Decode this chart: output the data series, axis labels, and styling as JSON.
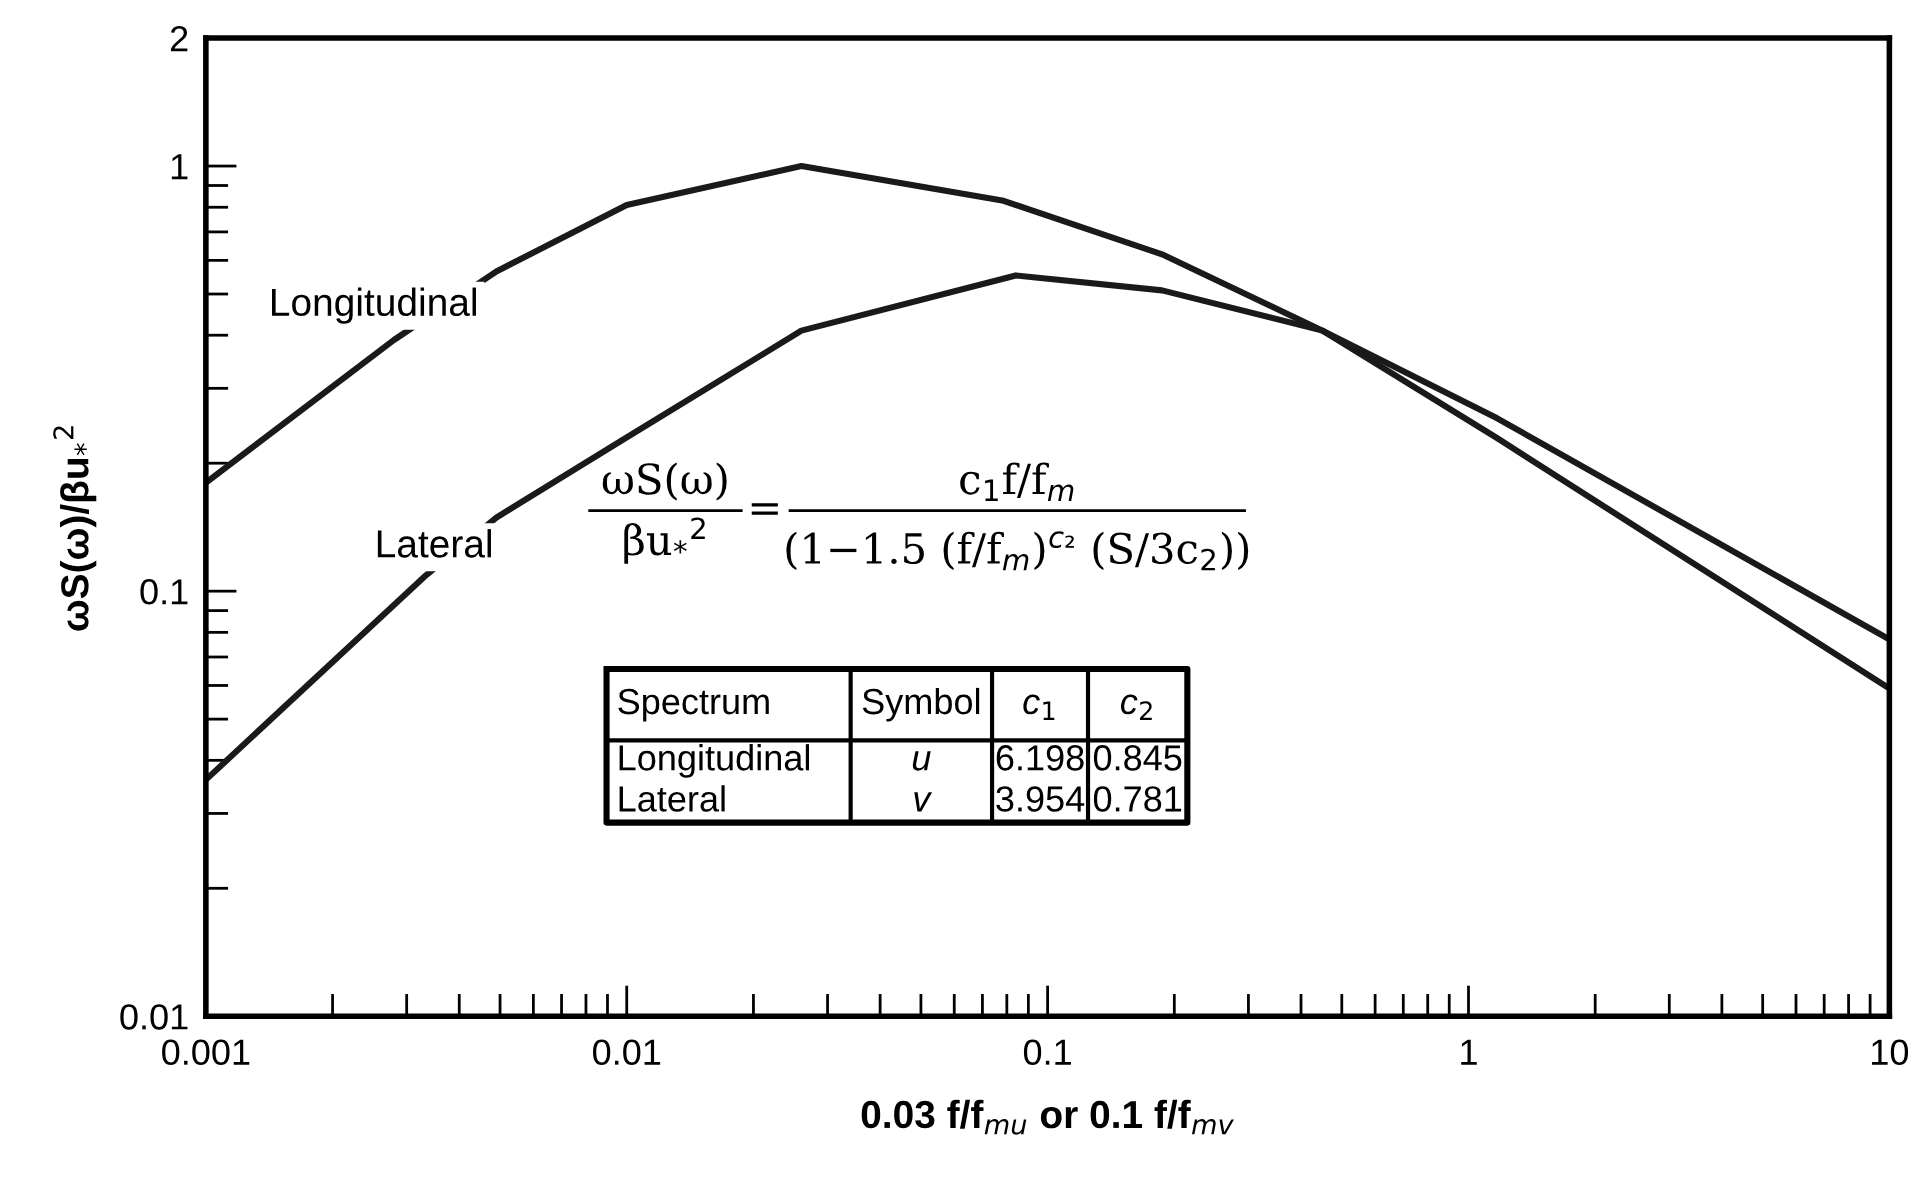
{
  "chart_data": {
    "type": "line",
    "xlabel": "0.03 f/f$_{mu}$ or 0.1 f/f$_{mv}$",
    "ylabel": "ωS(ω)/βu$_{*}$$^{2}$",
    "log": "xy",
    "xlim": [
      0.001,
      10
    ],
    "xticks": [
      0.001,
      0.01,
      0.1,
      1,
      10
    ],
    "ylim": [
      0.01,
      2
    ],
    "yticks": [
      0.01,
      0.1,
      1,
      2
    ],
    "grid": false,
    "legend": false,
    "marker": "none",
    "line_style": "solid",
    "series": [
      {
        "name": "Longitudinal",
        "color": "#1a1a1a",
        "x": [
          0.001,
          0.0028,
          0.0049,
          0.01,
          0.026,
          0.078,
          0.187,
          0.45,
          1.17,
          10
        ],
        "values": [
          0.18,
          0.39,
          0.565,
          0.81,
          1.0,
          0.83,
          0.62,
          0.41,
          0.229,
          0.059
        ]
      },
      {
        "name": "Lateral",
        "color": "#1a1a1a",
        "x": [
          0.001,
          0.0033,
          0.0049,
          0.01,
          0.026,
          0.084,
          0.187,
          0.45,
          1.17,
          10
        ],
        "values": [
          0.036,
          0.108,
          0.149,
          0.23,
          0.41,
          0.553,
          0.51,
          0.41,
          0.255,
          0.077
        ]
      }
    ],
    "annotations": [
      "ωS(ω)",
      "βu$_{*}$$^{2}$",
      "=",
      "c$_{1}$f/f$_{m}$",
      "(1−1.5 (f/f$_{m}$)$^{c₂}$ (S/3c$_{2}$))",
      "Spectrum",
      "Symbol",
      "c$_{1}$",
      "c$_{2}$",
      "Longitudinal",
      "u",
      "6.198",
      "0.845",
      "Lateral",
      "v",
      "3.954",
      "0.781"
    ]
  }
}
